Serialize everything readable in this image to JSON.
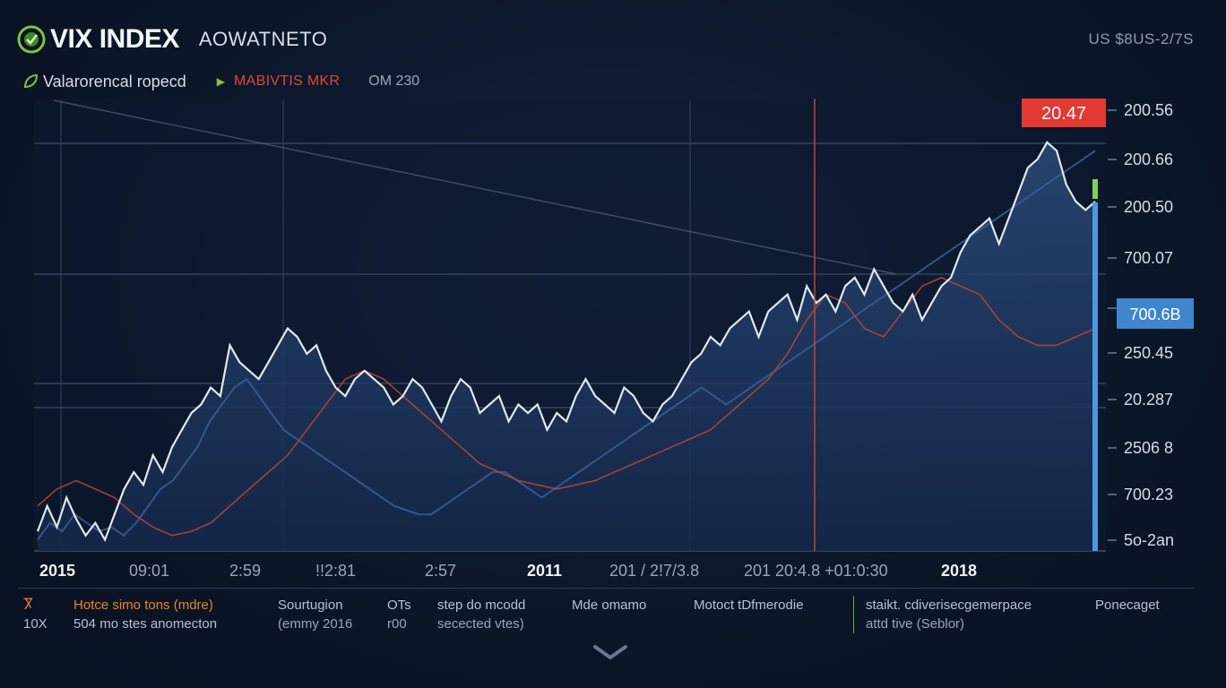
{
  "header": {
    "brand": "VIX INDEX",
    "subtitle": "AOWATNETO",
    "top_right": "US $8US-2/7S"
  },
  "subheader": {
    "label": "Valarorencal ropecd",
    "marker_label": "MABIVTIS MKR",
    "time": "OM 230"
  },
  "icons": {
    "logo": "vix-logo-icon",
    "sub": "leaf-icon",
    "arrow": "triangle-right-icon",
    "chevron": "chevron-down-icon"
  },
  "colors": {
    "main_line": "#dfe8f2",
    "shadow_line": "#3a5f95",
    "ma_line": "#b2453c",
    "price_tag": "#e23a32",
    "current_tag": "#3f86cf",
    "current_bar": "#4a9ae0",
    "marker": "#c0443c",
    "green_tick": "#7fd05a"
  },
  "chart_data": {
    "type": "line",
    "x_labels": [
      "2015",
      "09:01",
      "2:59",
      "!!2:81",
      "2:57",
      "2011",
      "201 / 2!7/3.8",
      "201 20:4.8 +01:0:30",
      "2018"
    ],
    "y_ticks": [
      "200.56",
      "200.66",
      "200.50",
      "700.07",
      "700.6B",
      "250.45",
      "20.287",
      "2506 8",
      "700.23",
      "5o-2an"
    ],
    "y_range": [
      0,
      100
    ],
    "price_tag": "20.47",
    "current_value_tag": "700.6B",
    "grid": true,
    "series": [
      {
        "role": "main",
        "values": [
          4,
          10,
          5,
          12,
          7,
          3,
          6,
          2,
          8,
          14,
          18,
          15,
          22,
          18,
          24,
          28,
          32,
          34,
          38,
          36,
          48,
          44,
          42,
          40,
          44,
          48,
          52,
          50,
          46,
          48,
          42,
          38,
          36,
          40,
          42,
          40,
          38,
          34,
          36,
          40,
          38,
          34,
          30,
          36,
          40,
          38,
          32,
          34,
          36,
          30,
          34,
          32,
          34,
          28,
          32,
          30,
          36,
          40,
          36,
          34,
          32,
          38,
          36,
          32,
          30,
          34,
          36,
          40,
          44,
          46,
          50,
          48,
          52,
          54,
          56,
          50,
          56,
          58,
          60,
          54,
          62,
          58,
          60,
          56,
          62,
          64,
          60,
          66,
          62,
          58,
          56,
          60,
          54,
          58,
          62,
          64,
          70,
          74,
          76,
          78,
          72,
          78,
          84,
          90,
          92,
          96,
          94,
          86,
          82,
          80,
          82
        ]
      },
      {
        "role": "shadow",
        "values": [
          2,
          6,
          4,
          8,
          6,
          4,
          5,
          3,
          6,
          10,
          14,
          16,
          20,
          24,
          30,
          34,
          38,
          40,
          36,
          32,
          28,
          26,
          24,
          22,
          20,
          18,
          16,
          14,
          12,
          10,
          9,
          8,
          8,
          10,
          12,
          14,
          16,
          18,
          18,
          16,
          14,
          12,
          14,
          16,
          18,
          20,
          22,
          24,
          26,
          28,
          30,
          32,
          34,
          36,
          38,
          36,
          34,
          36,
          38,
          40,
          42,
          44,
          46,
          48,
          50,
          52,
          54,
          56,
          58,
          60,
          62,
          64,
          66,
          68,
          70,
          72,
          74,
          76,
          78,
          80,
          82,
          84,
          86,
          88,
          90,
          92,
          94
        ]
      },
      {
        "role": "moving-average",
        "values": [
          10,
          14,
          16,
          14,
          12,
          8,
          5,
          3,
          4,
          6,
          10,
          14,
          18,
          22,
          28,
          34,
          40,
          42,
          40,
          36,
          32,
          28,
          24,
          20,
          18,
          16,
          15,
          14,
          15,
          16,
          18,
          20,
          22,
          24,
          26,
          28,
          32,
          36,
          40,
          46,
          54,
          60,
          58,
          52,
          50,
          56,
          62,
          64,
          62,
          60,
          54,
          50,
          48,
          48,
          50,
          52
        ]
      }
    ]
  },
  "footer": {
    "col1": {
      "l1": "Hotce simo tons (mdre)",
      "l2": "504 mo stes anomecton",
      "tag1": "Ⴟ",
      "tag2": "10X"
    },
    "col2": {
      "l1": "Sourtugion",
      "l2": "(emmy 2016"
    },
    "col3": {
      "l1": "OTs",
      "l2": "r00"
    },
    "col4": {
      "l1": "step do mcodd",
      "l2": "secected vtes)"
    },
    "col5": {
      "l1": "Mde omamo",
      "l2": ""
    },
    "col6": {
      "l1": "Motoct tDfmerodie",
      "l2": ""
    },
    "col7": {
      "l1": "staikt. cdiverisecgemerpace",
      "l2": "attd tive (Seblor)"
    },
    "col8": {
      "l1": "Ponecaget",
      "l2": ""
    }
  }
}
